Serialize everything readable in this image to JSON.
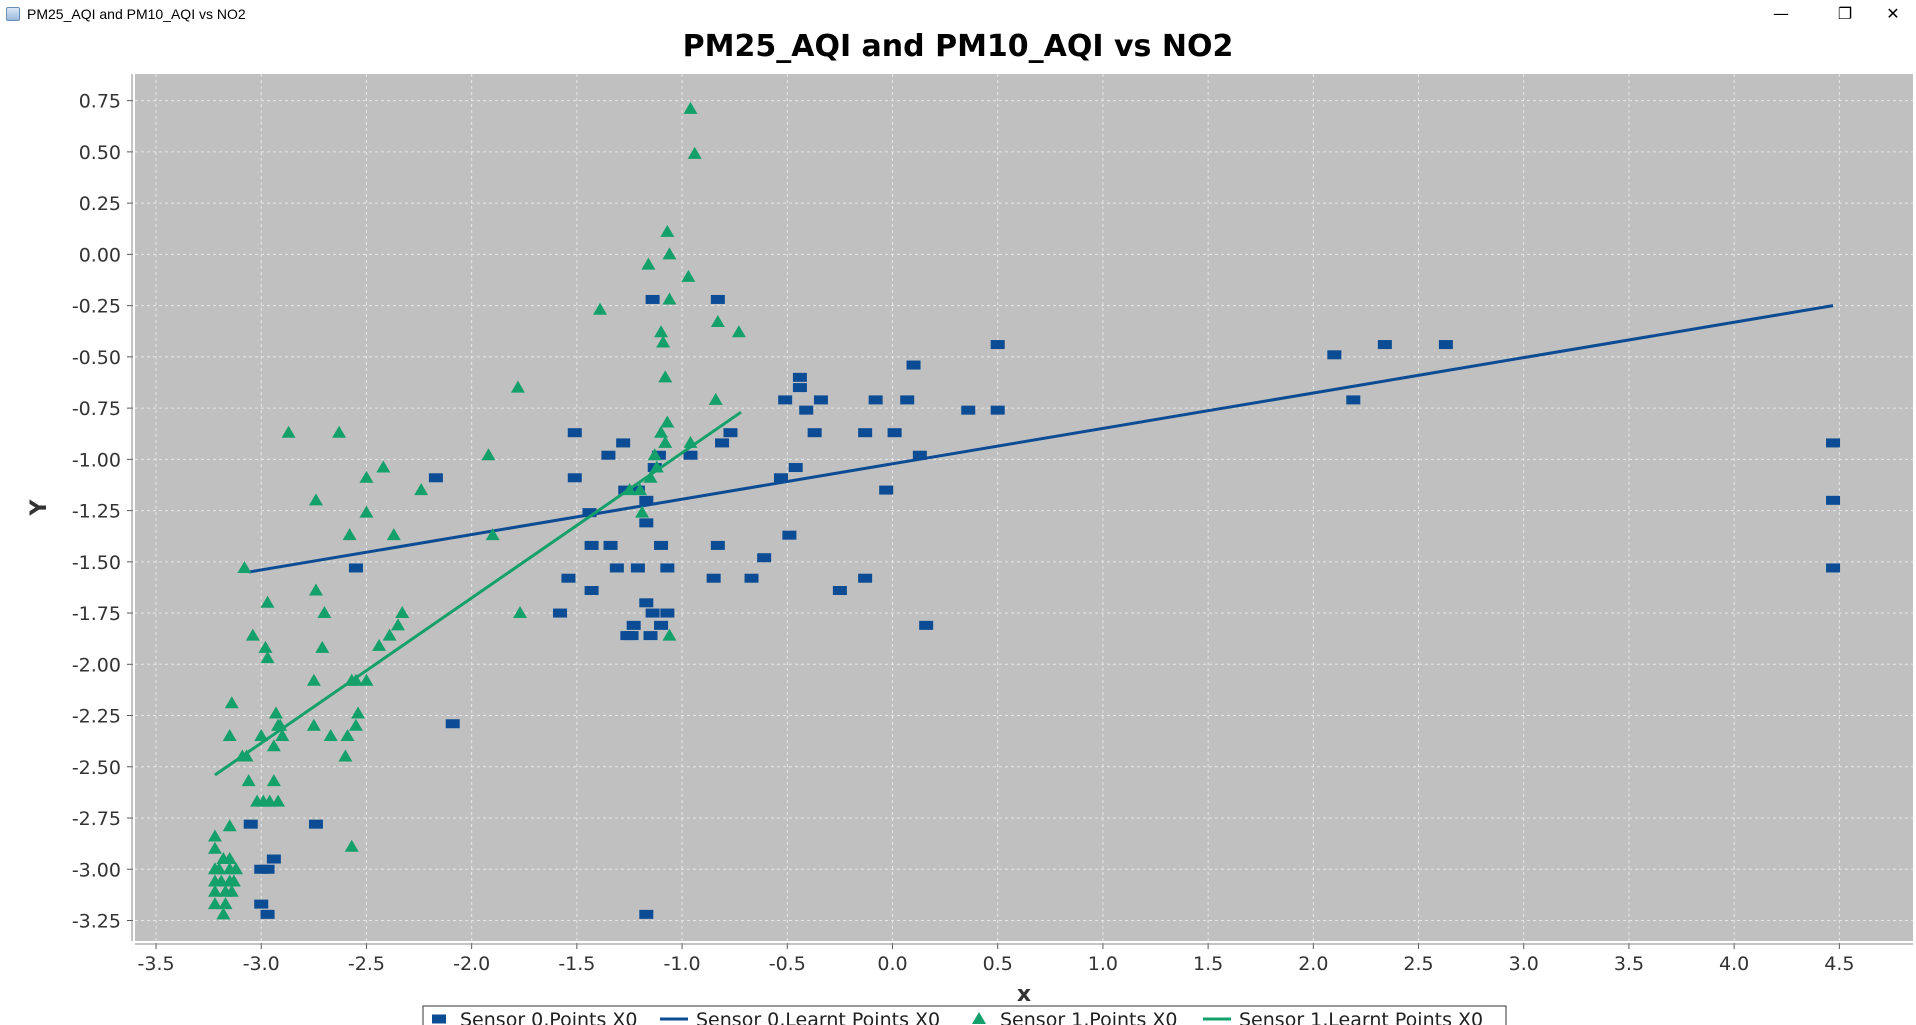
{
  "window": {
    "title": "PM25_AQI and PM10_AQI vs NO2",
    "minimize_glyph": "—",
    "maximize_glyph": "❐",
    "close_glyph": "✕"
  },
  "chart_data": {
    "type": "scatter",
    "title": "PM25_AQI and PM10_AQI vs NO2",
    "xlabel": "x",
    "ylabel": "Y",
    "xlim": [
      -3.6,
      4.85
    ],
    "ylim": [
      -3.35,
      0.88
    ],
    "xticks": [
      -3.5,
      -3.0,
      -2.5,
      -2.0,
      -1.5,
      -1.0,
      -0.5,
      0.0,
      0.5,
      1.0,
      1.5,
      2.0,
      2.5,
      3.0,
      3.5,
      4.0,
      4.5
    ],
    "xtick_labels": [
      "-3.5",
      "-3.0",
      "-2.5",
      "-2.0",
      "-1.5",
      "-1.0",
      "-0.5",
      "0.0",
      "0.5",
      "1.0",
      "1.5",
      "2.0",
      "2.5",
      "3.0",
      "3.5",
      "4.0",
      "4.5"
    ],
    "yticks": [
      0.75,
      0.5,
      0.25,
      0.0,
      -0.25,
      -0.5,
      -0.75,
      -1.0,
      -1.25,
      -1.5,
      -1.75,
      -2.0,
      -2.25,
      -2.5,
      -2.75,
      -3.0,
      -3.25
    ],
    "ytick_labels": [
      "0.75",
      "0.50",
      "0.25",
      "0.00",
      "-0.25",
      "-0.50",
      "-0.75",
      "-1.00",
      "-1.25",
      "-1.50",
      "-1.75",
      "-2.00",
      "-2.25",
      "-2.50",
      "-2.75",
      "-3.00",
      "-3.25"
    ],
    "grid": true,
    "legend_position": "bottom",
    "colors": {
      "plot_background": "#c0c0c0",
      "sensor0": "#0b4c94",
      "sensor1": "#14a06a",
      "gridline": "#e6e6e6"
    },
    "series": [
      {
        "name": "Sensor 0,Points X0",
        "type": "scatter",
        "marker": "square",
        "points": [
          [
            -2.55,
            -1.53
          ],
          [
            -2.17,
            -1.09
          ],
          [
            -2.09,
            -2.29
          ],
          [
            -3.05,
            -2.78
          ],
          [
            -2.74,
            -2.78
          ],
          [
            -3.0,
            -3.0
          ],
          [
            -2.97,
            -3.0
          ],
          [
            -2.94,
            -2.95
          ],
          [
            -3.0,
            -3.17
          ],
          [
            -2.97,
            -3.22
          ],
          [
            -1.51,
            -0.87
          ],
          [
            -1.51,
            -1.09
          ],
          [
            -1.54,
            -1.58
          ],
          [
            -1.58,
            -1.75
          ],
          [
            -1.44,
            -1.26
          ],
          [
            -1.43,
            -1.42
          ],
          [
            -1.43,
            -1.64
          ],
          [
            -1.35,
            -0.98
          ],
          [
            -1.34,
            -1.42
          ],
          [
            -1.31,
            -1.53
          ],
          [
            -1.28,
            -0.92
          ],
          [
            -1.27,
            -1.15
          ],
          [
            -1.26,
            -1.86
          ],
          [
            -1.24,
            -1.86
          ],
          [
            -1.23,
            -1.81
          ],
          [
            -1.21,
            -1.15
          ],
          [
            -1.21,
            -1.53
          ],
          [
            -1.17,
            -1.2
          ],
          [
            -1.17,
            -1.31
          ],
          [
            -1.17,
            -1.7
          ],
          [
            -1.15,
            -1.86
          ],
          [
            -1.14,
            -1.75
          ],
          [
            -1.14,
            -0.22
          ],
          [
            -1.13,
            -1.04
          ],
          [
            -1.11,
            -0.98
          ],
          [
            -1.1,
            -1.42
          ],
          [
            -1.1,
            -1.81
          ],
          [
            -1.07,
            -1.53
          ],
          [
            -1.07,
            -1.75
          ],
          [
            -0.96,
            -0.98
          ],
          [
            -0.83,
            -0.22
          ],
          [
            -0.85,
            -1.58
          ],
          [
            -0.83,
            -1.42
          ],
          [
            -0.81,
            -0.92
          ],
          [
            -0.77,
            -0.87
          ],
          [
            -0.67,
            -1.58
          ],
          [
            -0.61,
            -1.48
          ],
          [
            -0.53,
            -1.09
          ],
          [
            -0.51,
            -0.71
          ],
          [
            -0.49,
            -1.37
          ],
          [
            -0.46,
            -1.04
          ],
          [
            -0.44,
            -0.6
          ],
          [
            -0.44,
            -0.65
          ],
          [
            -0.41,
            -0.76
          ],
          [
            -0.37,
            -0.87
          ],
          [
            -0.34,
            -0.71
          ],
          [
            -0.25,
            -1.64
          ],
          [
            -0.13,
            -0.87
          ],
          [
            -0.13,
            -1.58
          ],
          [
            -0.08,
            -0.71
          ],
          [
            -0.03,
            -1.15
          ],
          [
            0.01,
            -0.87
          ],
          [
            0.07,
            -0.71
          ],
          [
            0.1,
            -0.54
          ],
          [
            0.13,
            -0.98
          ],
          [
            0.16,
            -1.81
          ],
          [
            0.36,
            -0.76
          ],
          [
            0.5,
            -0.44
          ],
          [
            0.5,
            -0.76
          ],
          [
            2.1,
            -0.49
          ],
          [
            2.19,
            -0.71
          ],
          [
            2.34,
            -0.44
          ],
          [
            2.63,
            -0.44
          ],
          [
            4.47,
            -0.92
          ],
          [
            4.47,
            -1.2
          ],
          [
            4.47,
            -1.53
          ],
          [
            -1.17,
            -3.22
          ]
        ]
      },
      {
        "name": "Sensor 0,Learnt Points X0",
        "type": "line",
        "points": [
          [
            -3.06,
            -1.55
          ],
          [
            4.47,
            -0.25
          ]
        ]
      },
      {
        "name": "Sensor 1,Points X0",
        "type": "scatter",
        "marker": "triangle",
        "points": [
          [
            -3.22,
            -2.84
          ],
          [
            -3.22,
            -2.9
          ],
          [
            -3.22,
            -3.0
          ],
          [
            -3.22,
            -3.06
          ],
          [
            -3.22,
            -3.11
          ],
          [
            -3.22,
            -3.17
          ],
          [
            -3.2,
            -3.0
          ],
          [
            -3.19,
            -3.06
          ],
          [
            -3.18,
            -3.22
          ],
          [
            -3.18,
            -2.95
          ],
          [
            -3.17,
            -3.11
          ],
          [
            -3.17,
            -3.17
          ],
          [
            -3.15,
            -3.0
          ],
          [
            -3.15,
            -3.06
          ],
          [
            -3.15,
            -2.95
          ],
          [
            -3.14,
            -3.11
          ],
          [
            -3.13,
            -3.06
          ],
          [
            -3.12,
            -3.0
          ],
          [
            -3.15,
            -2.79
          ],
          [
            -3.15,
            -2.35
          ],
          [
            -3.14,
            -2.19
          ],
          [
            -3.09,
            -2.45
          ],
          [
            -3.07,
            -2.45
          ],
          [
            -3.06,
            -2.57
          ],
          [
            -3.02,
            -2.67
          ],
          [
            -2.99,
            -2.67
          ],
          [
            -2.96,
            -2.67
          ],
          [
            -2.94,
            -2.57
          ],
          [
            -2.92,
            -2.67
          ],
          [
            -2.94,
            -2.4
          ],
          [
            -2.93,
            -2.24
          ],
          [
            -2.92,
            -2.3
          ],
          [
            -2.91,
            -2.3
          ],
          [
            -2.9,
            -2.35
          ],
          [
            -3.0,
            -2.35
          ],
          [
            -2.98,
            -1.92
          ],
          [
            -2.97,
            -1.97
          ],
          [
            -3.04,
            -1.86
          ],
          [
            -2.97,
            -1.7
          ],
          [
            -3.08,
            -1.53
          ],
          [
            -2.87,
            -0.87
          ],
          [
            -2.75,
            -2.08
          ],
          [
            -2.75,
            -2.3
          ],
          [
            -2.74,
            -1.2
          ],
          [
            -2.74,
            -1.64
          ],
          [
            -2.71,
            -1.92
          ],
          [
            -2.7,
            -1.75
          ],
          [
            -2.67,
            -2.35
          ],
          [
            -2.63,
            -0.87
          ],
          [
            -2.6,
            -2.45
          ],
          [
            -2.59,
            -2.35
          ],
          [
            -2.58,
            -1.37
          ],
          [
            -2.57,
            -2.08
          ],
          [
            -2.57,
            -2.89
          ],
          [
            -2.55,
            -2.3
          ],
          [
            -2.54,
            -2.24
          ],
          [
            -2.55,
            -2.08
          ],
          [
            -2.5,
            -2.08
          ],
          [
            -2.5,
            -1.09
          ],
          [
            -2.5,
            -1.26
          ],
          [
            -2.44,
            -1.91
          ],
          [
            -2.42,
            -1.04
          ],
          [
            -2.39,
            -1.86
          ],
          [
            -2.37,
            -1.37
          ],
          [
            -2.35,
            -1.81
          ],
          [
            -2.33,
            -1.75
          ],
          [
            -2.24,
            -1.15
          ],
          [
            -1.92,
            -0.98
          ],
          [
            -1.9,
            -1.37
          ],
          [
            -1.78,
            -0.65
          ],
          [
            -1.77,
            -1.75
          ],
          [
            -1.39,
            -0.27
          ],
          [
            -1.25,
            -1.15
          ],
          [
            -1.2,
            -1.15
          ],
          [
            -1.19,
            -1.26
          ],
          [
            -1.16,
            -0.05
          ],
          [
            -1.13,
            -0.98
          ],
          [
            -1.12,
            -1.04
          ],
          [
            -1.1,
            -0.38
          ],
          [
            -1.1,
            -0.87
          ],
          [
            -1.09,
            -0.43
          ],
          [
            -1.08,
            -0.6
          ],
          [
            -1.08,
            -0.92
          ],
          [
            -1.07,
            -0.82
          ],
          [
            -1.07,
            0.11
          ],
          [
            -1.06,
            -0.22
          ],
          [
            -1.06,
            0.0
          ],
          [
            -1.06,
            -1.86
          ],
          [
            -1.15,
            -1.09
          ],
          [
            -0.97,
            -0.11
          ],
          [
            -0.96,
            0.71
          ],
          [
            -0.94,
            0.49
          ],
          [
            -0.96,
            -0.92
          ],
          [
            -0.84,
            -0.71
          ],
          [
            -0.83,
            -0.33
          ],
          [
            -0.73,
            -0.38
          ]
        ]
      },
      {
        "name": "Sensor 1,Learnt Points X0",
        "type": "line",
        "points": [
          [
            -3.22,
            -2.54
          ],
          [
            -0.72,
            -0.77
          ]
        ]
      }
    ]
  }
}
